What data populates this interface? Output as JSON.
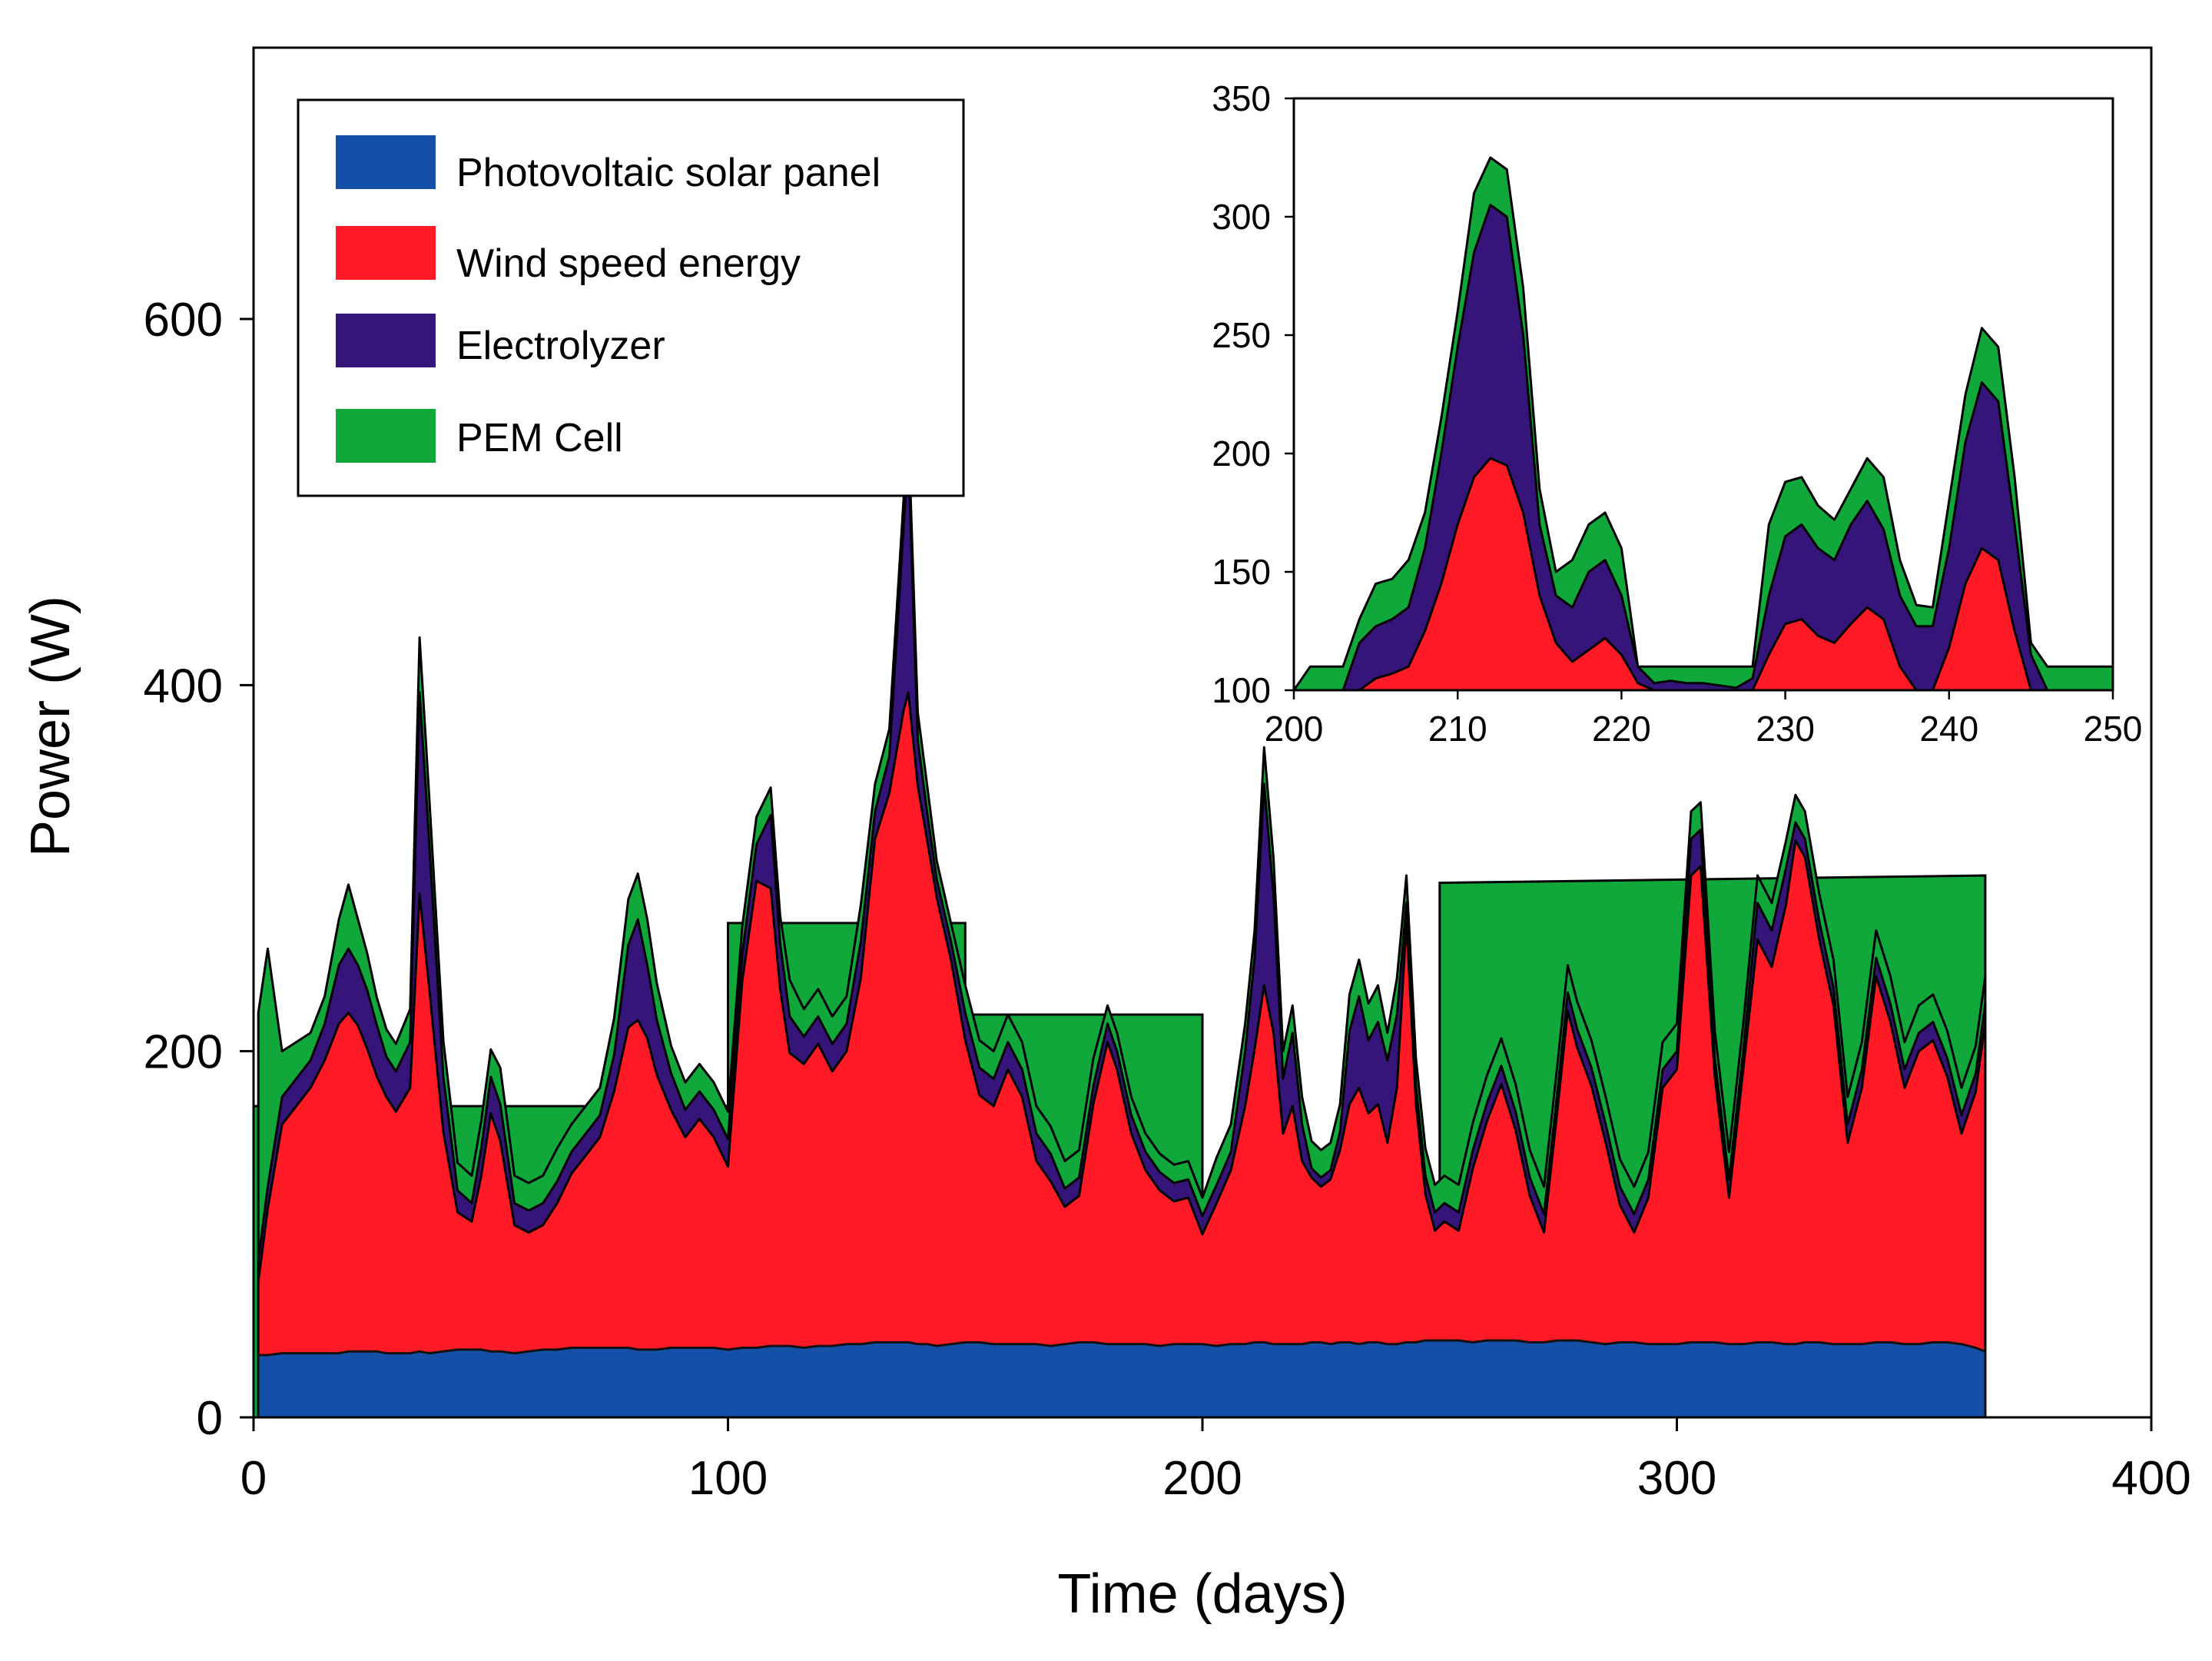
{
  "chart_data": {
    "type": "area",
    "stacked": true,
    "xlabel": "Time (days)",
    "ylabel": "Power (W)",
    "xlim": [
      0,
      400
    ],
    "ylim": [
      0,
      780
    ],
    "xticks": [
      "0",
      "100",
      "200",
      "300",
      "400"
    ],
    "yticks": [
      "0",
      "200",
      "400",
      "600"
    ],
    "grid": false,
    "legend_position": "top-left",
    "colors": {
      "pv": "#1450a8",
      "wind": "#ff1a25",
      "elec": "#35157a",
      "pem": "#10a83a"
    },
    "legend": [
      {
        "key": "pv",
        "label": "Photovoltaic solar panel"
      },
      {
        "key": "wind",
        "label": "Wind speed energy"
      },
      {
        "key": "elec",
        "label": "Electrolyzer"
      },
      {
        "key": "pem",
        "label": "PEM Cell"
      }
    ],
    "series_totals": {
      "x": [
        1,
        3,
        6,
        9,
        12,
        15,
        18,
        20,
        22,
        24,
        26,
        28,
        30,
        33,
        35,
        37,
        40,
        43,
        46,
        48,
        50,
        52,
        55,
        58,
        61,
        64,
        67,
        70,
        73,
        76,
        79,
        81,
        83,
        85,
        88,
        91,
        94,
        97,
        100,
        103,
        106,
        109,
        111,
        113,
        116,
        119,
        122,
        125,
        128,
        131,
        134,
        137,
        138,
        140,
        142,
        144,
        147,
        150,
        153,
        156,
        159,
        162,
        165,
        168,
        171,
        174,
        177,
        180,
        182,
        185,
        188,
        191,
        194,
        197,
        200,
        203,
        206,
        209,
        211,
        213,
        215,
        217,
        219,
        221,
        223,
        225,
        227,
        229,
        231,
        233,
        235,
        237,
        239,
        241,
        243,
        245,
        247,
        249,
        251,
        254,
        257,
        260,
        263,
        266,
        269,
        272,
        275,
        277,
        279,
        282,
        285,
        288,
        291,
        294,
        297,
        300,
        303,
        305,
        308,
        311,
        314,
        317,
        320,
        323,
        325,
        327,
        330,
        333,
        336,
        339,
        342,
        345,
        348,
        351,
        354,
        357,
        360,
        363,
        365
      ],
      "pv": [
        34,
        34,
        35,
        35,
        35,
        35,
        35,
        36,
        36,
        36,
        36,
        35,
        35,
        35,
        36,
        35,
        36,
        37,
        37,
        37,
        36,
        36,
        35,
        36,
        37,
        37,
        38,
        38,
        38,
        38,
        38,
        37,
        37,
        37,
        38,
        38,
        38,
        38,
        37,
        38,
        38,
        39,
        39,
        39,
        38,
        39,
        39,
        40,
        40,
        41,
        41,
        41,
        41,
        40,
        40,
        39,
        40,
        41,
        41,
        40,
        40,
        40,
        40,
        39,
        40,
        41,
        41,
        40,
        40,
        40,
        40,
        39,
        40,
        40,
        40,
        39,
        40,
        40,
        41,
        41,
        40,
        40,
        40,
        40,
        41,
        41,
        40,
        41,
        41,
        40,
        41,
        41,
        40,
        40,
        41,
        41,
        42,
        42,
        42,
        42,
        41,
        42,
        42,
        42,
        41,
        41,
        42,
        42,
        42,
        41,
        40,
        41,
        41,
        40,
        40,
        40,
        41,
        41,
        41,
        40,
        40,
        41,
        41,
        40,
        40,
        41,
        41,
        40,
        40,
        40,
        41,
        41,
        40,
        40,
        41,
        41,
        40,
        38,
        36
      ],
      "wind": [
        40,
        80,
        125,
        135,
        145,
        160,
        180,
        185,
        178,
        165,
        150,
        140,
        132,
        145,
        250,
        200,
        120,
        75,
        70,
        95,
        130,
        115,
        70,
        65,
        68,
        80,
        95,
        105,
        115,
        140,
        175,
        180,
        170,
        150,
        130,
        115,
        125,
        115,
        100,
        200,
        255,
        250,
        195,
        160,
        155,
        165,
        150,
        160,
        200,
        275,
        300,
        345,
        355,
        305,
        275,
        245,
        210,
        165,
        135,
        130,
        150,
        135,
        100,
        90,
        75,
        80,
        130,
        165,
        150,
        115,
        95,
        85,
        78,
        80,
        60,
        78,
        95,
        130,
        160,
        195,
        170,
        115,
        130,
        100,
        90,
        85,
        90,
        105,
        130,
        140,
        125,
        130,
        110,
        140,
        230,
        130,
        80,
        60,
        65,
        60,
        95,
        120,
        140,
        115,
        80,
        60,
        130,
        180,
        160,
        140,
        110,
        75,
        60,
        80,
        140,
        150,
        255,
        260,
        145,
        80,
        150,
        220,
        205,
        240,
        275,
        265,
        220,
        185,
        110,
        140,
        200,
        175,
        140,
        160,
        165,
        145,
        115,
        140,
        180
      ],
      "elec": [
        12,
        12,
        15,
        15,
        15,
        20,
        32,
        35,
        33,
        32,
        28,
        22,
        22,
        25,
        110,
        80,
        30,
        12,
        10,
        15,
        20,
        20,
        12,
        12,
        12,
        12,
        12,
        12,
        12,
        20,
        45,
        55,
        40,
        30,
        20,
        15,
        15,
        15,
        15,
        15,
        20,
        40,
        25,
        20,
        15,
        15,
        15,
        15,
        20,
        15,
        20,
        100,
        130,
        25,
        15,
        10,
        10,
        15,
        15,
        15,
        15,
        15,
        15,
        15,
        10,
        10,
        10,
        10,
        10,
        10,
        10,
        10,
        10,
        10,
        10,
        10,
        10,
        30,
        50,
        110,
        75,
        30,
        40,
        20,
        5,
        5,
        5,
        10,
        40,
        50,
        40,
        45,
        45,
        40,
        10,
        10,
        10,
        10,
        10,
        10,
        10,
        10,
        10,
        10,
        10,
        10,
        10,
        10,
        10,
        10,
        10,
        10,
        10,
        10,
        10,
        10,
        20,
        20,
        10,
        10,
        10,
        20,
        20,
        20,
        10,
        10,
        10,
        10,
        10,
        10,
        10,
        10,
        10,
        10,
        10,
        10,
        10,
        10,
        10
      ],
      "pem": [
        135,
        130,
        25,
        20,
        15,
        15,
        25,
        35,
        25,
        20,
        15,
        15,
        15,
        18,
        30,
        25,
        20,
        15,
        15,
        15,
        15,
        20,
        15,
        15,
        15,
        18,
        15,
        15,
        15,
        20,
        25,
        25,
        25,
        20,
        15,
        15,
        15,
        15,
        15,
        15,
        15,
        15,
        15,
        20,
        15,
        15,
        15,
        15,
        20,
        15,
        15,
        15,
        15,
        15,
        15,
        10,
        10,
        15,
        15,
        15,
        15,
        15,
        15,
        15,
        15,
        15,
        15,
        10,
        10,
        10,
        10,
        10,
        10,
        10,
        10,
        15,
        15,
        15,
        15,
        20,
        20,
        15,
        15,
        15,
        15,
        15,
        15,
        15,
        20,
        20,
        20,
        20,
        15,
        20,
        15,
        15,
        15,
        15,
        15,
        15,
        15,
        15,
        15,
        15,
        15,
        15,
        15,
        15,
        15,
        15,
        15,
        15,
        15,
        15,
        15,
        15,
        15,
        15,
        15,
        15,
        15,
        15,
        15,
        15,
        15,
        15,
        15,
        15,
        15,
        15,
        15,
        15,
        15,
        15,
        15,
        15,
        15,
        15,
        15
      ]
    },
    "pem_upper_envelope": {
      "x": [
        0,
        100,
        100,
        150,
        150,
        200,
        200,
        250,
        250,
        365
      ],
      "y": [
        170,
        170,
        270,
        270,
        220,
        220,
        110,
        110,
        292,
        296
      ]
    },
    "inset": {
      "xlim": [
        200,
        250
      ],
      "ylim": [
        100,
        350
      ],
      "xticks": [
        "200",
        "210",
        "220",
        "230",
        "240",
        "250"
      ],
      "yticks": [
        "100",
        "150",
        "200",
        "250",
        "300",
        "350"
      ],
      "x": [
        200,
        201,
        202,
        203,
        204,
        205,
        206,
        207,
        208,
        209,
        210,
        211,
        212,
        213,
        214,
        215,
        216,
        217,
        218,
        219,
        220,
        221,
        222,
        223,
        224,
        225,
        226,
        227,
        228,
        229,
        230,
        231,
        232,
        233,
        234,
        235,
        236,
        237,
        238,
        239,
        240,
        241,
        242,
        243,
        244,
        245,
        246,
        247,
        248,
        249,
        250
      ],
      "wind": [
        100,
        100,
        100,
        100,
        100,
        105,
        107,
        110,
        125,
        145,
        170,
        190,
        198,
        195,
        175,
        140,
        120,
        112,
        117,
        122,
        115,
        103,
        100,
        100,
        100,
        100,
        100,
        100,
        100,
        115,
        128,
        130,
        123,
        120,
        128,
        135,
        130,
        110,
        100,
        100,
        118,
        145,
        160,
        155,
        125,
        100,
        100,
        100,
        100,
        100,
        100
      ],
      "elec_top": [
        100,
        100,
        100,
        100,
        120,
        127,
        130,
        135,
        160,
        200,
        245,
        285,
        305,
        300,
        250,
        170,
        140,
        135,
        150,
        155,
        140,
        110,
        103,
        104,
        103,
        103,
        102,
        101,
        105,
        140,
        165,
        170,
        160,
        155,
        170,
        180,
        168,
        140,
        127,
        127,
        160,
        205,
        230,
        222,
        170,
        115,
        100,
        100,
        100,
        100,
        100
      ],
      "pem_top": [
        100,
        110,
        110,
        110,
        130,
        145,
        147,
        155,
        175,
        215,
        260,
        310,
        325,
        320,
        270,
        185,
        150,
        155,
        170,
        175,
        160,
        110,
        110,
        110,
        110,
        110,
        110,
        110,
        110,
        170,
        188,
        190,
        178,
        172,
        185,
        198,
        190,
        155,
        136,
        135,
        180,
        225,
        253,
        245,
        190,
        120,
        110,
        110,
        110,
        110,
        110
      ]
    }
  }
}
